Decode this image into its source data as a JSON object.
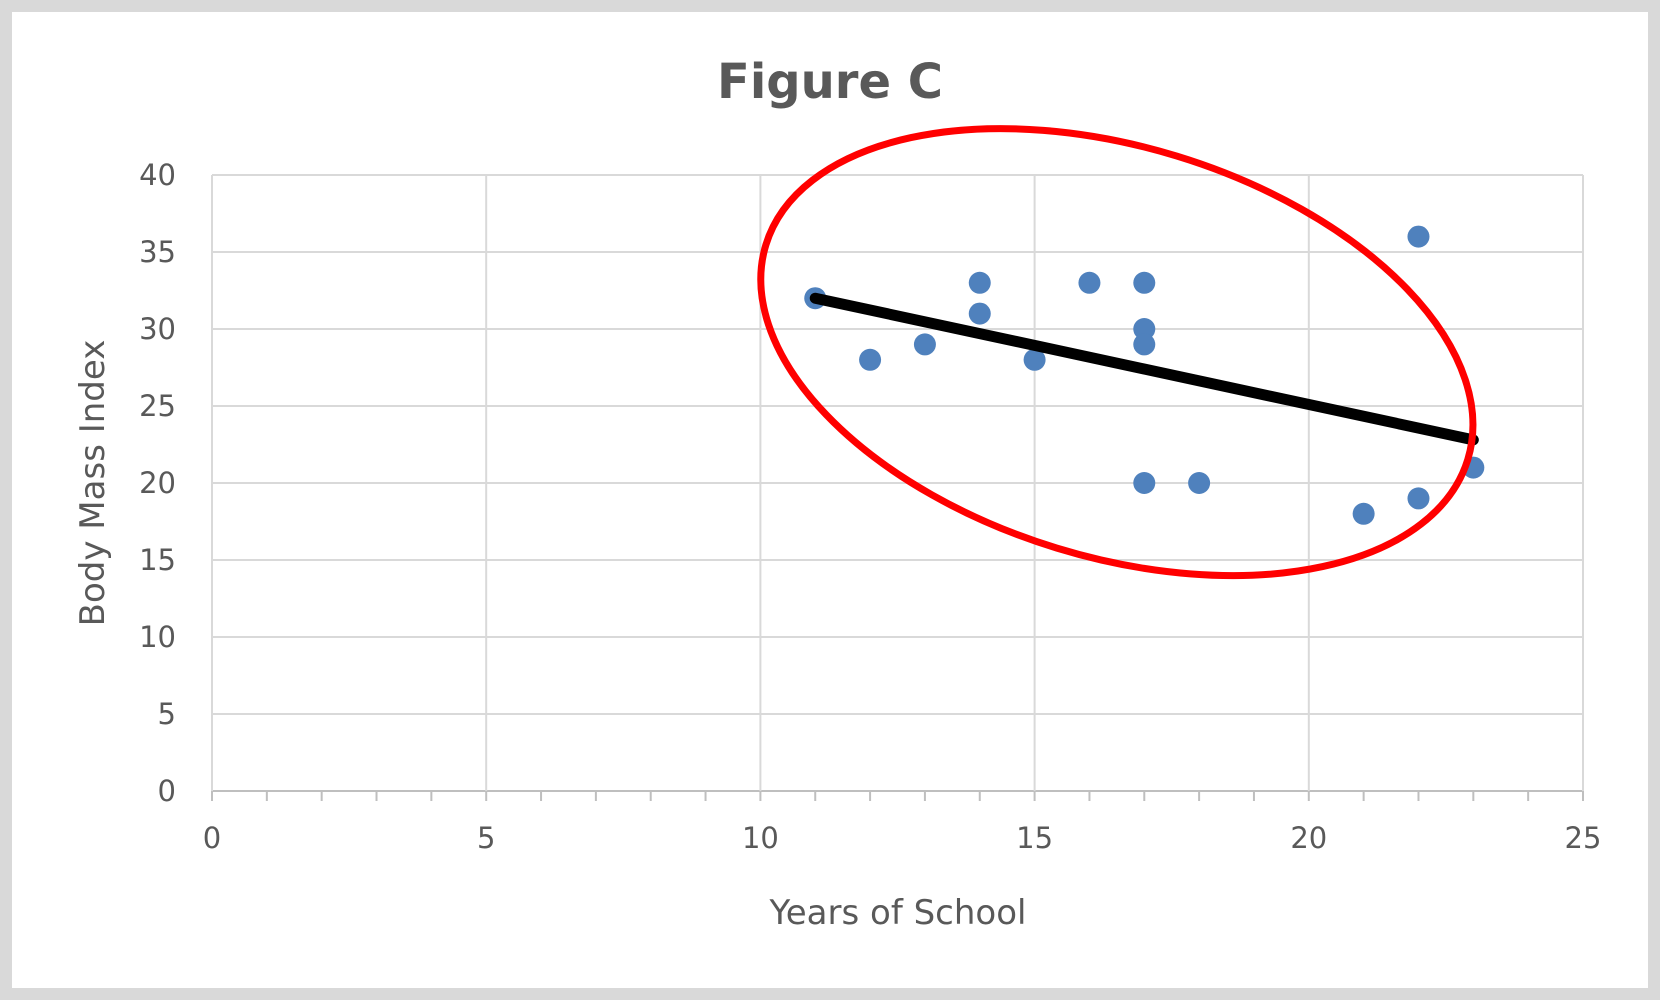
{
  "chart_data": {
    "type": "scatter",
    "title": "Figure C",
    "xlabel": "Years of School",
    "ylabel": "Body Mass Index",
    "xlim": [
      0,
      25
    ],
    "ylim": [
      0,
      40
    ],
    "xticks": [
      0,
      5,
      10,
      15,
      20,
      25
    ],
    "yticks": [
      0,
      5,
      10,
      15,
      20,
      25,
      30,
      35,
      40
    ],
    "grid": true,
    "series": [
      {
        "name": "Body Mass Index",
        "color": "#4f81bd",
        "points": [
          [
            11,
            32
          ],
          [
            12,
            28
          ],
          [
            13,
            29
          ],
          [
            14,
            33
          ],
          [
            14,
            31
          ],
          [
            15,
            28
          ],
          [
            16,
            33
          ],
          [
            17,
            33
          ],
          [
            17,
            30
          ],
          [
            17,
            29
          ],
          [
            17,
            20
          ],
          [
            18,
            20
          ],
          [
            21,
            18
          ],
          [
            22,
            19
          ],
          [
            22,
            36
          ],
          [
            23,
            21
          ]
        ]
      }
    ],
    "trendline": {
      "color": "#000000",
      "from": [
        11,
        32
      ],
      "to": [
        23,
        22.8
      ]
    },
    "annotation": {
      "type": "ellipse",
      "color": "#ff0000",
      "center": [
        16.5,
        28.5
      ],
      "note": "encircles data points"
    }
  }
}
